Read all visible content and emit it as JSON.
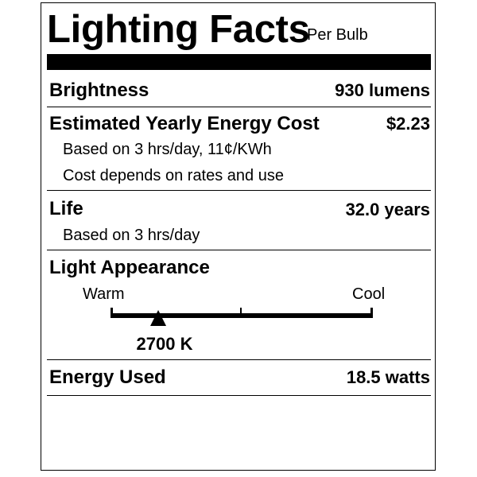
{
  "header": {
    "title": "Lighting Facts",
    "subtitle": "Per Bulb"
  },
  "brightness": {
    "label": "Brightness",
    "value": "930 lumens"
  },
  "cost": {
    "label": "Estimated Yearly Energy Cost",
    "value": "$2.23",
    "note1": "Based on 3 hrs/day, 11¢/KWh",
    "note2": "Cost depends on rates and use"
  },
  "life": {
    "label": "Life",
    "value": "32.0 years",
    "note": "Based on 3 hrs/day"
  },
  "appearance": {
    "label": "Light Appearance",
    "warm_label": "Warm",
    "cool_label": "Cool",
    "value": "2700 K",
    "scale_position": 0.18
  },
  "energy": {
    "label": "Energy Used",
    "value": "18.5 watts"
  }
}
